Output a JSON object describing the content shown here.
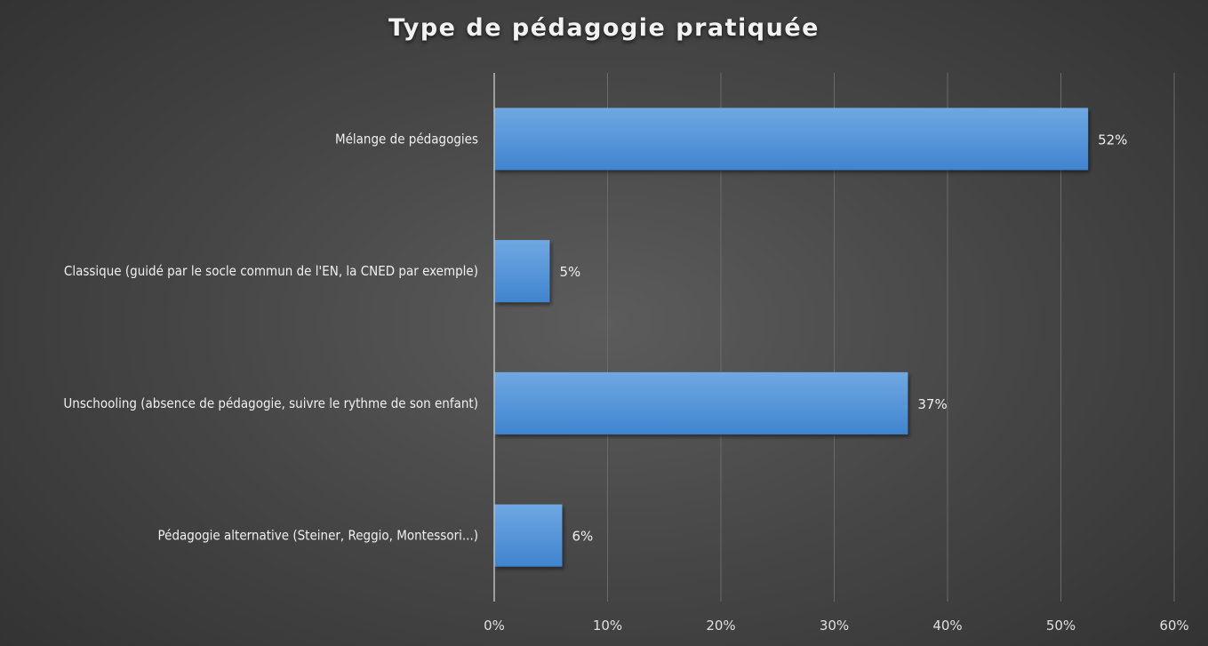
{
  "chart_data": {
    "type": "bar",
    "orientation": "horizontal",
    "title": "Type de pédagogie pratiquée",
    "categories": [
      "Mélange de pédagogies",
      "Classique (guidé par le socle commun de l'EN, la CNED par exemple)",
      "Unschooling (absence de pédagogie, suivre le rythme de son enfant)",
      "Pédagogie alternative (Steiner, Reggio, Montessori...)"
    ],
    "values": [
      52.4,
      4.9,
      36.5,
      6.0
    ],
    "data_labels": [
      "52%",
      "5%",
      "37%",
      "6%"
    ],
    "xlim": [
      0,
      60
    ],
    "x_ticks": [
      0,
      10,
      20,
      30,
      40,
      50,
      60
    ],
    "x_tick_labels": [
      "0%",
      "10%",
      "20%",
      "30%",
      "40%",
      "50%",
      "60%"
    ],
    "xlabel": "",
    "ylabel": "",
    "grid": "vertical",
    "legend": "none",
    "colors": {
      "bar_top": "#6fa8e2",
      "bar_bottom": "#3f84cf",
      "gridline": "#6a6a6a",
      "axis": "#bdbdbd"
    }
  }
}
